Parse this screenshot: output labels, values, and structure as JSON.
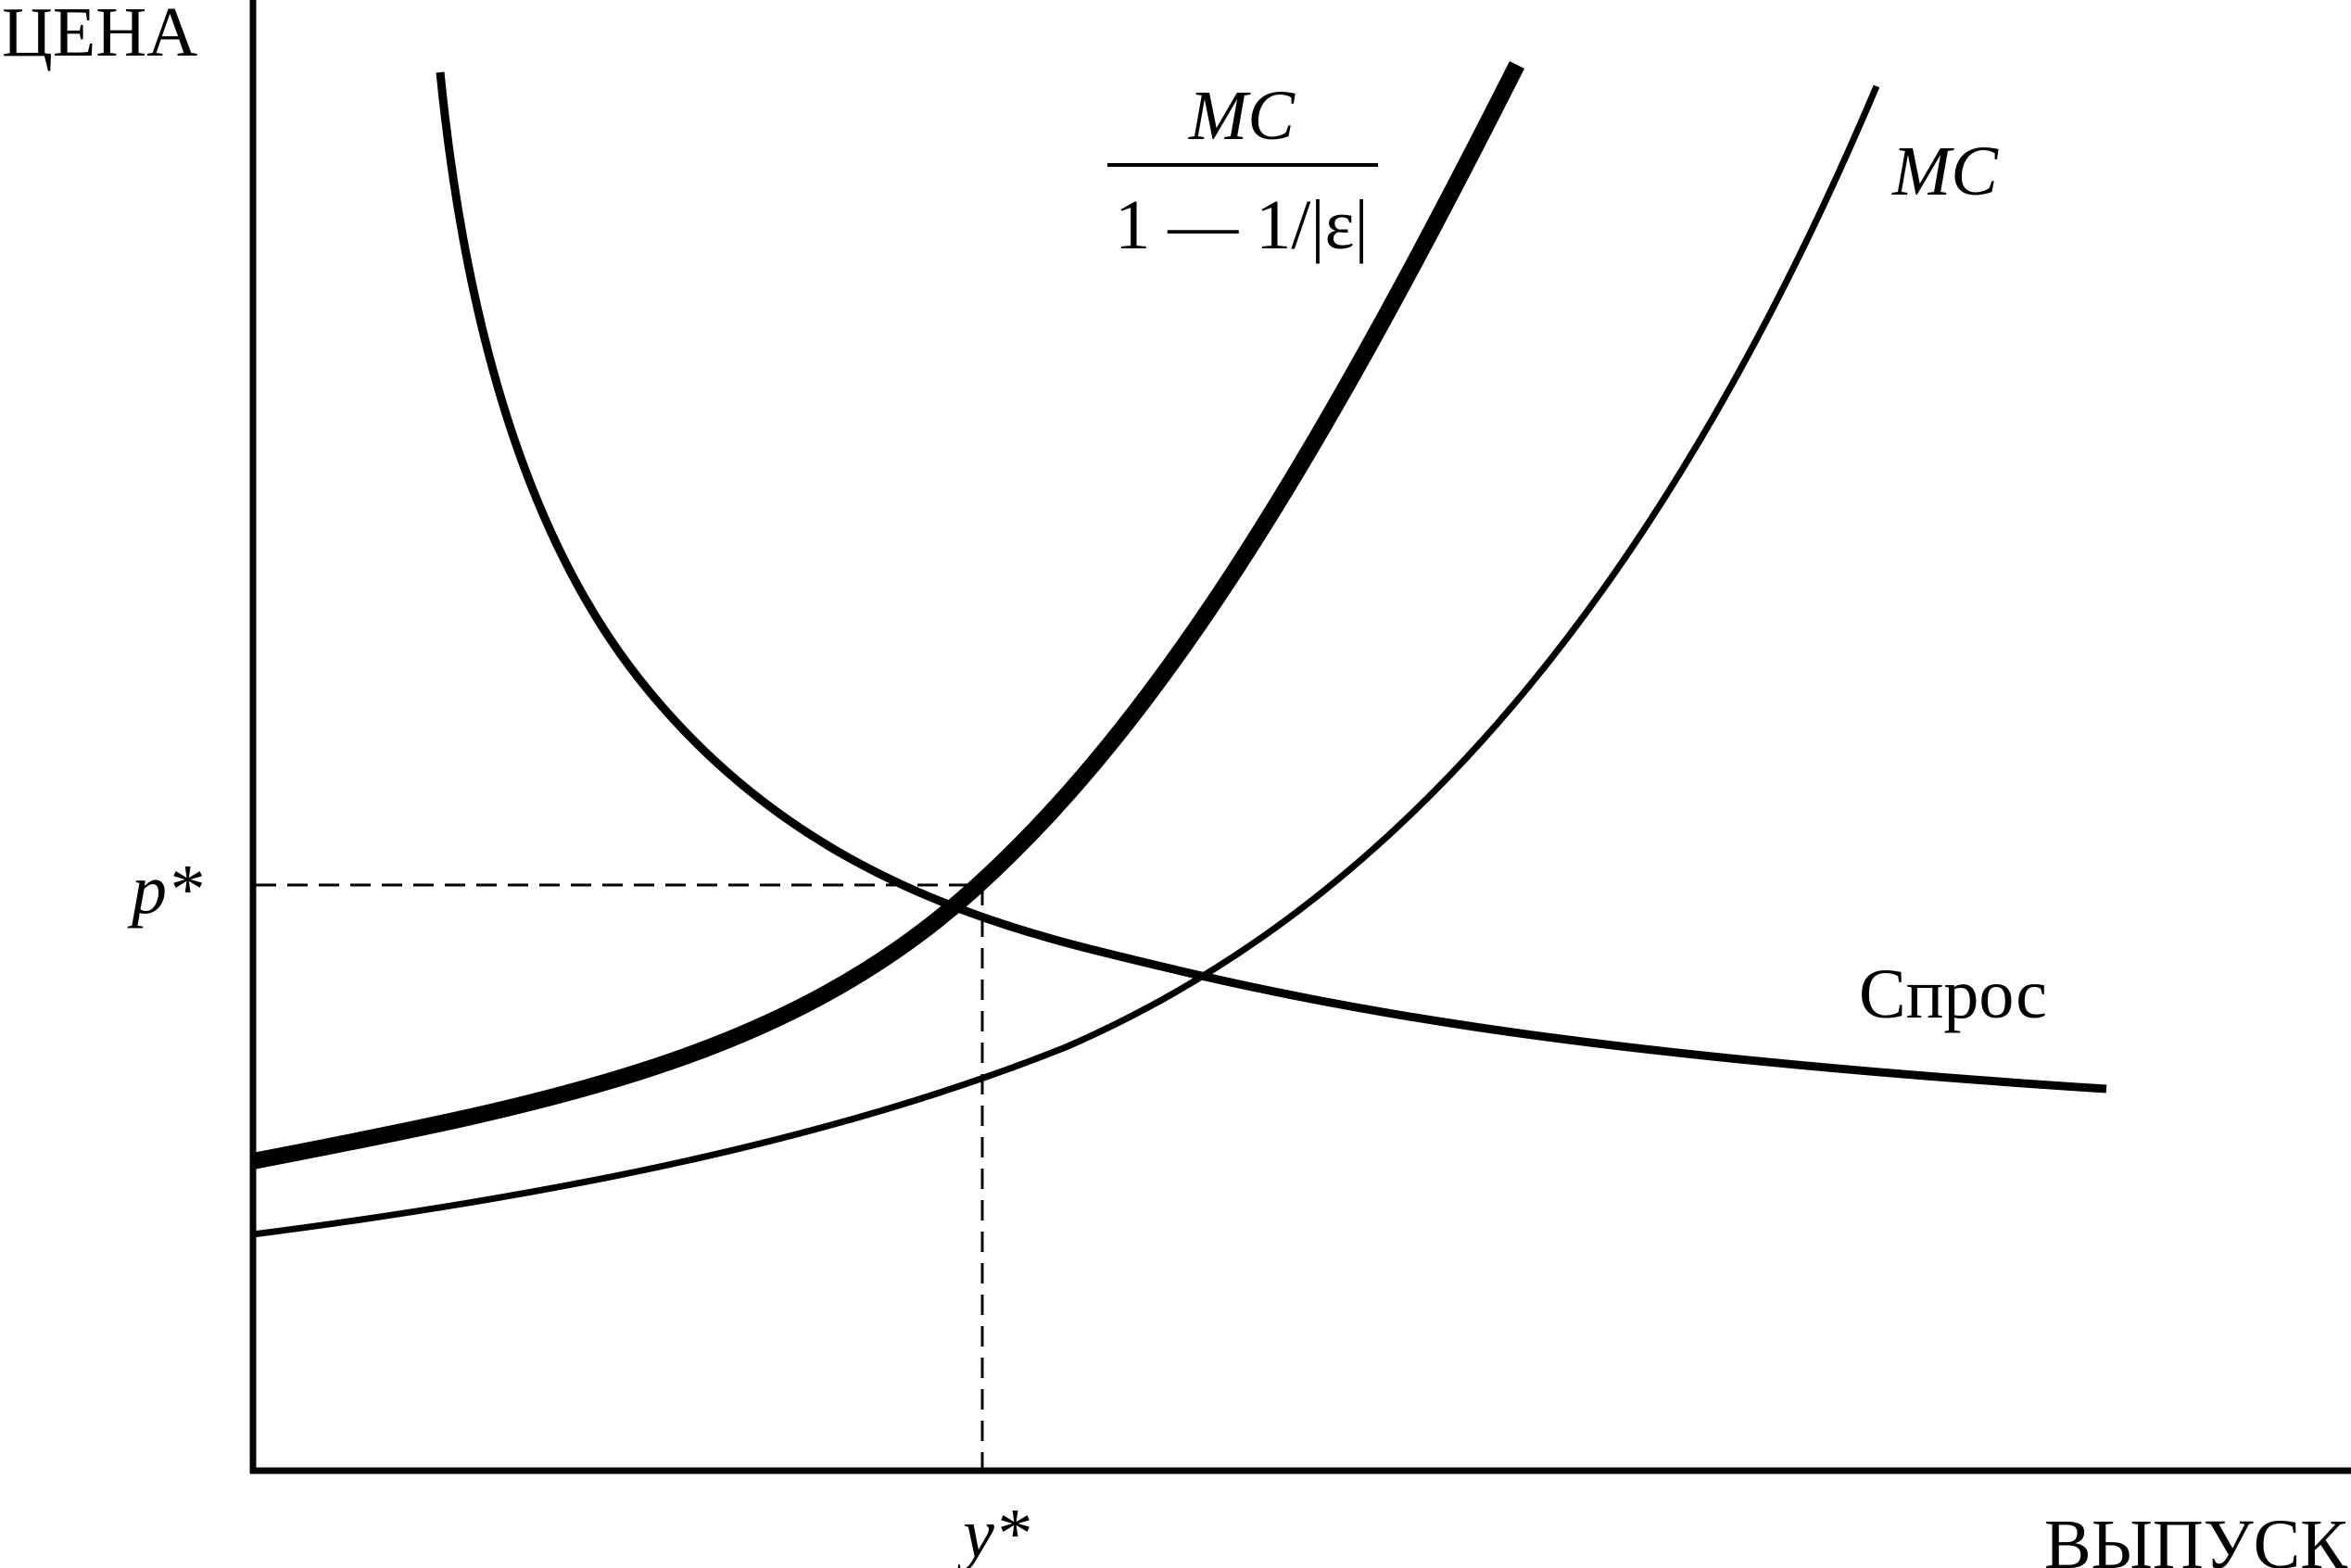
{
  "axes": {
    "y_label": "ЦЕНА",
    "x_label": "ВЫПУСК"
  },
  "equilibrium": {
    "price_label": "p*",
    "quantity_label": "y*"
  },
  "curves": {
    "demand": {
      "label": "Спрос"
    },
    "mc": {
      "label": "MC"
    },
    "markup": {
      "numerator": "MC",
      "denominator": "1 — 1/|ε|"
    }
  },
  "colors": {
    "ink": "#000000",
    "background": "#ffffff"
  }
}
